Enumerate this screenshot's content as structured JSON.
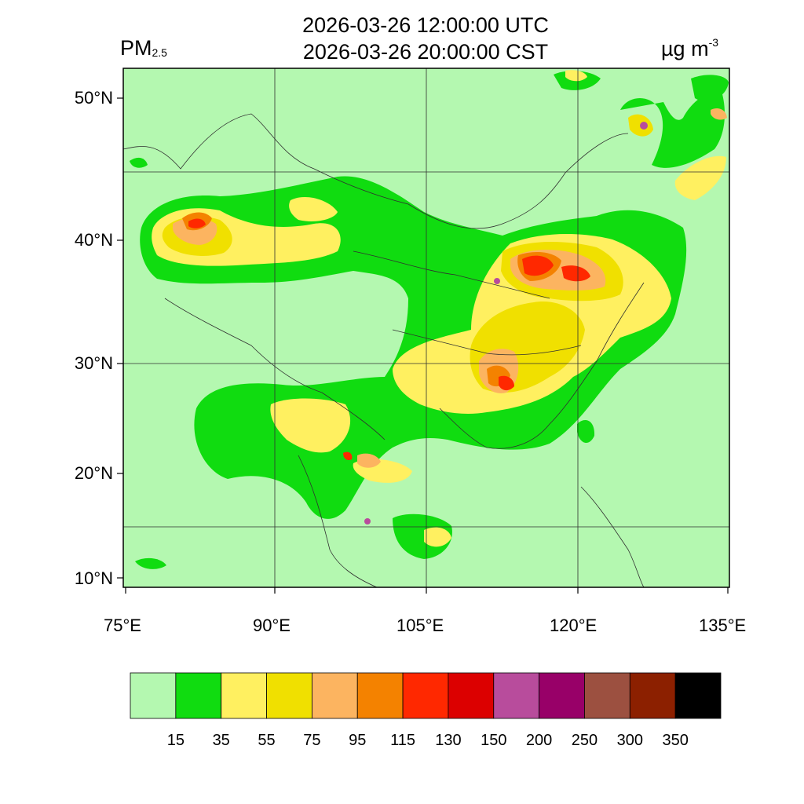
{
  "header": {
    "title_line1": "2026-03-26 12:00:00 UTC",
    "title_line2": "2026-03-26 20:00:00 CST",
    "variable": "PM",
    "variable_sub": "2.5",
    "unit_main": "µg m",
    "unit_sup": "-3"
  },
  "map": {
    "lat_ticks": [
      "50°N",
      "40°N",
      "30°N",
      "20°N",
      "10°N"
    ],
    "lon_ticks": [
      "75°E",
      "90°E",
      "105°E",
      "120°E",
      "135°E"
    ]
  },
  "colorbar": {
    "labels": [
      "15",
      "35",
      "55",
      "75",
      "95",
      "115",
      "130",
      "150",
      "200",
      "250",
      "300",
      "350"
    ],
    "colors": [
      "#b4f8b0",
      "#10dc10",
      "#fff060",
      "#f0e000",
      "#fcb460",
      "#f48200",
      "#ff2800",
      "#dc0000",
      "#b84c9c",
      "#980068",
      "#9c5040",
      "#8c2000",
      "#000000"
    ]
  },
  "colors": {
    "background_level": "#b4f8b0",
    "boundary_lines": "#303030"
  }
}
